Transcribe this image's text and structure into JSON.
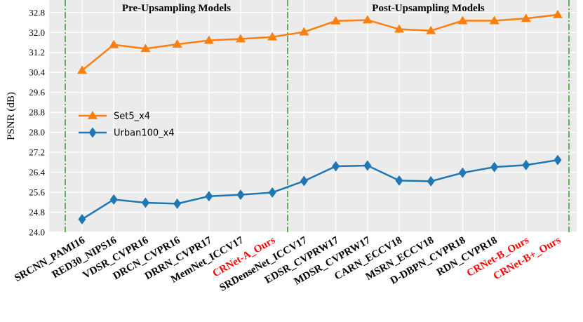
{
  "chart_data": {
    "type": "line",
    "ylabel": "PSNR (dB)",
    "ylim": [
      24.0,
      33.3
    ],
    "yticks": [
      "24.0",
      "24.8",
      "25.6",
      "26.4",
      "27.2",
      "28.0",
      "28.8",
      "29.6",
      "30.4",
      "31.2",
      "32.0",
      "32.8"
    ],
    "ytick_values": [
      24.0,
      24.8,
      25.6,
      26.4,
      27.2,
      28.0,
      28.8,
      29.6,
      30.4,
      31.2,
      32.0,
      32.8
    ],
    "grid": true,
    "legend_position": "middle-left",
    "categories": [
      "SRCNN_PAMI16",
      "RED30_NIPS16",
      "VDSR_CVPR16",
      "DRCN_CVPR16",
      "DRRN_CVPR17",
      "MemNet_ICCV17",
      "CRNet-A_Ours",
      "SRDenseNet_ICCV17",
      "EDSR_CVPRW17",
      "MDSR_CVPRW17",
      "CARN_ECCV18",
      "MSRN_ECCV18",
      "D-DBPN_CVPR18",
      "RDN_CVPR18",
      "CRNet-B_Ours",
      "CRNet-B+_Ours"
    ],
    "highlighted_categories": [
      "CRNet-A_Ours",
      "CRNet-B_Ours",
      "CRNet-B+_Ours"
    ],
    "highlight_color": "#ff0000",
    "regions": [
      {
        "label": "Pre-Upsampling Models",
        "from_index": 0,
        "to_index": 6
      },
      {
        "label": "Post-Upsampling Models",
        "from_index": 7,
        "to_index": 15
      }
    ],
    "divider_color": "#2ca02c",
    "series": [
      {
        "name": "Set5_x4",
        "color": "#ff7f0e",
        "marker": "triangle",
        "values": [
          30.48,
          31.51,
          31.35,
          31.53,
          31.68,
          31.74,
          31.82,
          32.02,
          32.46,
          32.5,
          32.13,
          32.07,
          32.47,
          32.47,
          32.56,
          32.71
        ]
      },
      {
        "name": "Urban100_x4",
        "color": "#1f77b4",
        "marker": "diamond",
        "values": [
          24.52,
          25.31,
          25.18,
          25.14,
          25.44,
          25.5,
          25.59,
          26.05,
          26.64,
          26.67,
          26.07,
          26.04,
          26.38,
          26.61,
          26.69,
          26.89
        ]
      }
    ]
  }
}
